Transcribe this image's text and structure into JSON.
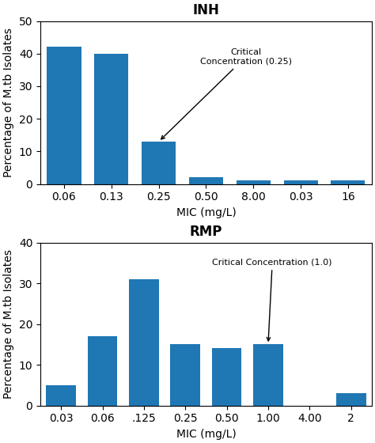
{
  "chart_data": [
    {
      "type": "bar",
      "title": "INH",
      "categories": [
        "0.06",
        "0.13",
        "0.25",
        "0.50",
        "8.00",
        "0.03",
        "16"
      ],
      "values": [
        42,
        40,
        13,
        2,
        1,
        1,
        1
      ],
      "xlabel": "MIC (mg/L)",
      "ylabel": "Percentage of M.tb Isolates",
      "ylim": [
        0,
        50
      ],
      "yticks": [
        0,
        10,
        20,
        30,
        40,
        50
      ],
      "grid": false,
      "annotations": [
        {
          "text": "Critical\nConcentration (0.25)",
          "category": "0.25"
        }
      ]
    },
    {
      "type": "bar",
      "title": "RMP",
      "categories": [
        "0.03",
        "0.06",
        ".125",
        "0.25",
        "0.50",
        "1.00",
        "4.00",
        "2"
      ],
      "values": [
        5,
        17,
        31,
        15,
        14,
        15,
        0,
        3
      ],
      "xlabel": "MIC (mg/L)",
      "ylabel": "Percentage of M.tb Isolates",
      "ylim": [
        0,
        40
      ],
      "yticks": [
        0,
        10,
        20,
        30,
        40
      ],
      "grid": false,
      "annotations": [
        {
          "text": "Critical Concentration (1.0)",
          "category": "1.00"
        }
      ]
    }
  ]
}
